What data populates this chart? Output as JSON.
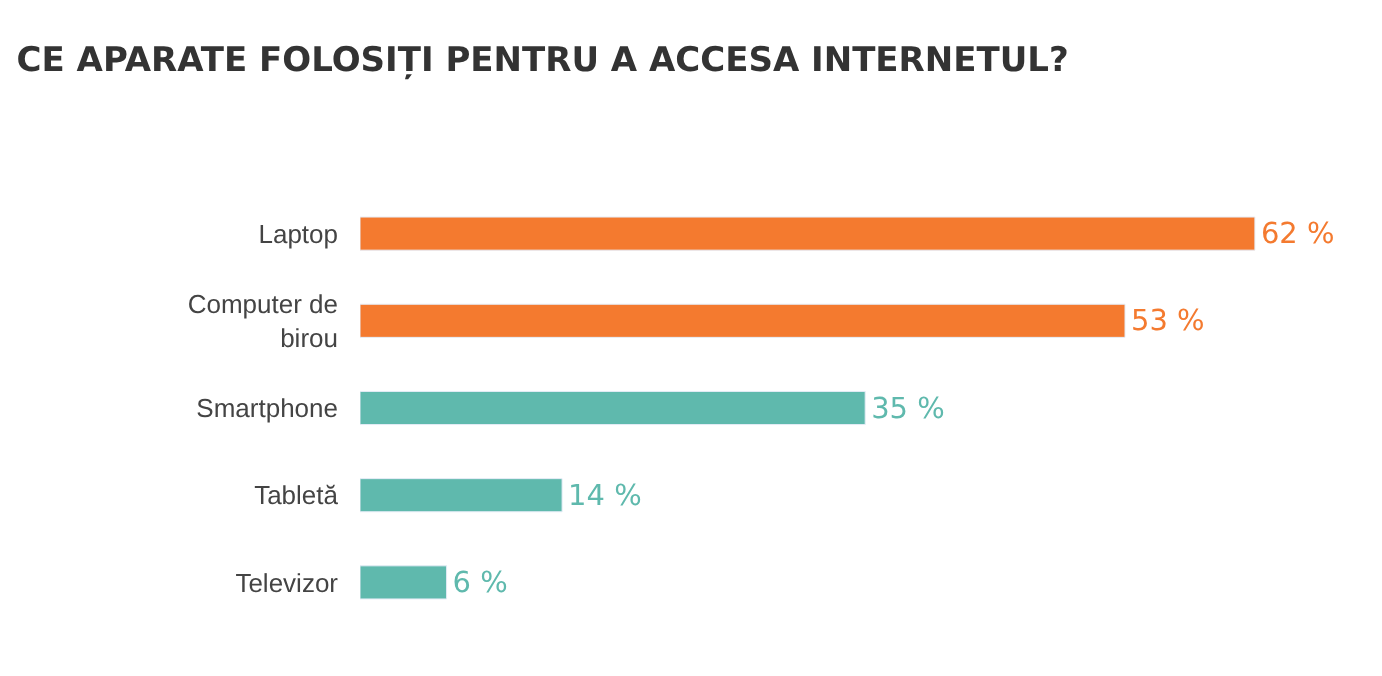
{
  "chart_data": {
    "type": "bar",
    "orientation": "horizontal",
    "title": "CE APARATE FOLOSIȚI PENTRU A ACCESA INTERNETUL?",
    "categories": [
      "Laptop",
      "Computer de birou",
      "Smartphone",
      "Tabletă",
      "Televizor"
    ],
    "values": [
      62,
      53,
      35,
      14,
      6
    ],
    "colors": [
      "#f47a2f",
      "#f47a2f",
      "#5fb9ad",
      "#5fb9ad",
      "#5fb9ad"
    ],
    "value_labels": [
      "62 %",
      "53 %",
      "35 %",
      "14 %",
      "6 %"
    ],
    "tick_labels": "y"
  }
}
